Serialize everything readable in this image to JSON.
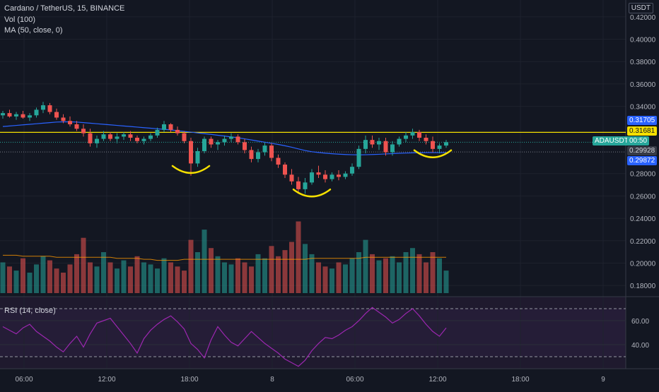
{
  "header": {
    "title": "Cardano / TetherUS, 15, BINANCE",
    "vol_label": "Vol (100)",
    "ma_label": "MA (50, close, 0)",
    "currency": "USDT"
  },
  "rsi_panel": {
    "label": "RSI (14, close)",
    "ticks": [
      "60.00",
      "40.00"
    ]
  },
  "price_axis": {
    "ticks": [
      "0.42000",
      "0.40000",
      "0.38000",
      "0.36000",
      "0.34000",
      "0.28000",
      "0.26000",
      "0.24000",
      "0.22000",
      "0.20000",
      "0.18000"
    ]
  },
  "price_tags": {
    "t1": "0.31705",
    "t2": "0.31681",
    "t3": "0.29928",
    "t4": "0.29872",
    "symbol": "ADAUSDT",
    "countdown": "00:50"
  },
  "time_axis": {
    "labels": [
      "06:00",
      "12:00",
      "18:00",
      "8",
      "06:00",
      "12:00",
      "18:00",
      "9"
    ]
  },
  "colors": {
    "up": "#26a69a",
    "down": "#ef5350",
    "ma": "#2962ff",
    "horizontal": "#f5e000",
    "rsi": "#9c27b0",
    "annotation": "#f5e000"
  },
  "chart_data": {
    "type": "candlestick",
    "yscale": [
      0.17,
      0.43
    ],
    "horizontal_line": 0.31681,
    "candles": [
      [
        0.332,
        0.336,
        0.329,
        0.334
      ],
      [
        0.334,
        0.337,
        0.33,
        0.331
      ],
      [
        0.331,
        0.335,
        0.328,
        0.333
      ],
      [
        0.333,
        0.336,
        0.329,
        0.33
      ],
      [
        0.33,
        0.334,
        0.327,
        0.332
      ],
      [
        0.332,
        0.339,
        0.33,
        0.337
      ],
      [
        0.337,
        0.344,
        0.334,
        0.341
      ],
      [
        0.341,
        0.343,
        0.333,
        0.335
      ],
      [
        0.335,
        0.338,
        0.328,
        0.33
      ],
      [
        0.33,
        0.333,
        0.325,
        0.327
      ],
      [
        0.327,
        0.331,
        0.322,
        0.324
      ],
      [
        0.324,
        0.327,
        0.318,
        0.32
      ],
      [
        0.32,
        0.324,
        0.313,
        0.316
      ],
      [
        0.316,
        0.32,
        0.304,
        0.307
      ],
      [
        0.307,
        0.314,
        0.303,
        0.311
      ],
      [
        0.311,
        0.318,
        0.309,
        0.315
      ],
      [
        0.315,
        0.317,
        0.309,
        0.311
      ],
      [
        0.311,
        0.316,
        0.307,
        0.313
      ],
      [
        0.313,
        0.317,
        0.31,
        0.315
      ],
      [
        0.315,
        0.318,
        0.309,
        0.312
      ],
      [
        0.312,
        0.314,
        0.307,
        0.309
      ],
      [
        0.309,
        0.313,
        0.306,
        0.311
      ],
      [
        0.311,
        0.316,
        0.309,
        0.314
      ],
      [
        0.314,
        0.321,
        0.312,
        0.319
      ],
      [
        0.319,
        0.327,
        0.317,
        0.324
      ],
      [
        0.324,
        0.325,
        0.317,
        0.319
      ],
      [
        0.319,
        0.322,
        0.314,
        0.316
      ],
      [
        0.316,
        0.318,
        0.307,
        0.309
      ],
      [
        0.309,
        0.312,
        0.278,
        0.289
      ],
      [
        0.289,
        0.303,
        0.286,
        0.3
      ],
      [
        0.3,
        0.313,
        0.298,
        0.311
      ],
      [
        0.311,
        0.313,
        0.303,
        0.306
      ],
      [
        0.306,
        0.31,
        0.301,
        0.308
      ],
      [
        0.308,
        0.314,
        0.305,
        0.311
      ],
      [
        0.311,
        0.316,
        0.308,
        0.313
      ],
      [
        0.313,
        0.315,
        0.306,
        0.308
      ],
      [
        0.308,
        0.311,
        0.298,
        0.301
      ],
      [
        0.301,
        0.304,
        0.29,
        0.293
      ],
      [
        0.293,
        0.302,
        0.29,
        0.299
      ],
      [
        0.299,
        0.308,
        0.296,
        0.305
      ],
      [
        0.305,
        0.307,
        0.291,
        0.294
      ],
      [
        0.294,
        0.297,
        0.285,
        0.288
      ],
      [
        0.288,
        0.29,
        0.276,
        0.279
      ],
      [
        0.279,
        0.284,
        0.27,
        0.273
      ],
      [
        0.273,
        0.277,
        0.262,
        0.266
      ],
      [
        0.266,
        0.276,
        0.262,
        0.272
      ],
      [
        0.272,
        0.284,
        0.27,
        0.281
      ],
      [
        0.281,
        0.287,
        0.276,
        0.279
      ],
      [
        0.279,
        0.283,
        0.272,
        0.275
      ],
      [
        0.275,
        0.281,
        0.273,
        0.279
      ],
      [
        0.279,
        0.283,
        0.274,
        0.277
      ],
      [
        0.277,
        0.282,
        0.275,
        0.28
      ],
      [
        0.28,
        0.289,
        0.278,
        0.286
      ],
      [
        0.286,
        0.305,
        0.284,
        0.302
      ],
      [
        0.302,
        0.314,
        0.298,
        0.31
      ],
      [
        0.31,
        0.314,
        0.303,
        0.306
      ],
      [
        0.306,
        0.312,
        0.301,
        0.309
      ],
      [
        0.309,
        0.312,
        0.296,
        0.299
      ],
      [
        0.299,
        0.309,
        0.296,
        0.306
      ],
      [
        0.306,
        0.313,
        0.304,
        0.311
      ],
      [
        0.311,
        0.317,
        0.308,
        0.314
      ],
      [
        0.314,
        0.32,
        0.311,
        0.317
      ],
      [
        0.317,
        0.319,
        0.309,
        0.312
      ],
      [
        0.312,
        0.315,
        0.306,
        0.309
      ],
      [
        0.309,
        0.313,
        0.299,
        0.302
      ],
      [
        0.302,
        0.307,
        0.298,
        0.305
      ],
      [
        0.305,
        0.31,
        0.303,
        0.308
      ]
    ],
    "ma": [
      0.322,
      0.3225,
      0.323,
      0.3235,
      0.324,
      0.3245,
      0.325,
      0.3255,
      0.326,
      0.3262,
      0.3262,
      0.326,
      0.3255,
      0.325,
      0.3245,
      0.324,
      0.3235,
      0.323,
      0.3225,
      0.322,
      0.3215,
      0.321,
      0.3205,
      0.32,
      0.3195,
      0.319,
      0.3183,
      0.3176,
      0.317,
      0.3163,
      0.3156,
      0.315,
      0.3142,
      0.3135,
      0.3127,
      0.312,
      0.311,
      0.31,
      0.309,
      0.308,
      0.307,
      0.306,
      0.3048,
      0.3035,
      0.302,
      0.3006,
      0.2995,
      0.2988,
      0.2982,
      0.2977,
      0.2973,
      0.297,
      0.2968,
      0.2967,
      0.2968,
      0.297,
      0.2972,
      0.2975,
      0.2978,
      0.2981,
      0.2983,
      0.2985,
      0.2986,
      0.2987,
      0.2987,
      0.2987,
      0.2987
    ],
    "volume": [
      30,
      26,
      22,
      34,
      20,
      28,
      36,
      32,
      24,
      20,
      28,
      38,
      54,
      30,
      26,
      40,
      30,
      24,
      32,
      26,
      36,
      30,
      28,
      24,
      34,
      30,
      26,
      22,
      52,
      40,
      62,
      44,
      36,
      30,
      28,
      34,
      30,
      26,
      38,
      34,
      46,
      36,
      42,
      50,
      70,
      48,
      38,
      30,
      26,
      24,
      30,
      28,
      34,
      40,
      52,
      38,
      32,
      34,
      36,
      30,
      40,
      44,
      38,
      30,
      40,
      34,
      22
    ],
    "vol_ma": [
      37,
      37,
      37,
      36,
      36,
      36,
      36,
      36,
      35,
      35,
      35,
      35,
      35,
      35,
      35,
      35,
      35,
      34,
      34,
      34,
      34,
      33,
      33,
      32,
      32,
      32,
      32,
      33,
      33,
      33,
      33,
      33,
      33,
      33,
      33,
      33,
      33,
      33,
      33,
      33,
      33,
      33,
      33,
      33,
      33,
      33,
      34,
      34,
      34,
      34,
      34,
      34,
      34,
      34,
      35,
      35,
      35,
      35,
      35,
      35,
      35,
      35,
      35,
      35,
      35,
      35,
      35
    ],
    "rsi": [
      55,
      52,
      49,
      54,
      57,
      51,
      47,
      43,
      38,
      34,
      41,
      47,
      38,
      49,
      58,
      60,
      62,
      55,
      48,
      41,
      33,
      45,
      52,
      57,
      61,
      64,
      59,
      53,
      41,
      36,
      29,
      44,
      55,
      48,
      42,
      39,
      45,
      51,
      46,
      41,
      37,
      33,
      28,
      25,
      22,
      27,
      35,
      41,
      46,
      45,
      48,
      52,
      55,
      60,
      66,
      71,
      67,
      63,
      58,
      61,
      66,
      70,
      64,
      57,
      51,
      47,
      54
    ],
    "annotations": [
      {
        "type": "arc",
        "at_candle": 28,
        "price": 0.283
      },
      {
        "type": "arc",
        "at_candle": 46,
        "price": 0.262
      },
      {
        "type": "arc",
        "at_candle": 64,
        "price": 0.297
      }
    ]
  }
}
